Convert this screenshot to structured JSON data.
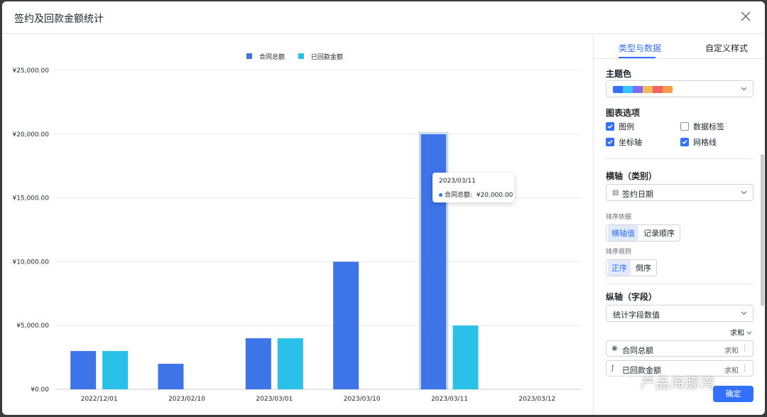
{
  "dialog": {
    "title": "签约及回款金额统计"
  },
  "tabs": [
    {
      "label": "类型与数据",
      "active": true
    },
    {
      "label": "自定义样式",
      "active": false
    }
  ],
  "theme": {
    "label": "主题色",
    "palette": [
      "#3370ff",
      "#33c5ff",
      "#7f6cf0",
      "#f6b95c",
      "#f26262",
      "#f79b48"
    ]
  },
  "chart_options": {
    "label": "图表选项",
    "items": [
      {
        "label": "图例",
        "checked": true
      },
      {
        "label": "数据标签",
        "checked": false
      },
      {
        "label": "坐标轴",
        "checked": true
      },
      {
        "label": "网格线",
        "checked": true
      }
    ]
  },
  "x_axis": {
    "label": "横轴（类别）",
    "field": "签约日期",
    "sort_by_label": "排序依据",
    "sort_by_options": [
      "横轴值",
      "记录顺序"
    ],
    "sort_by_selected": "横轴值",
    "sort_rule_label": "排序规则",
    "sort_rule_options": [
      "正序",
      "倒序"
    ],
    "sort_rule_selected": "正序"
  },
  "y_axis": {
    "label": "纵轴（字段）",
    "mode": "统计字段数值",
    "aggregate_all": "求和",
    "fields": [
      {
        "name": "合同总额",
        "agg": "求和",
        "icon": "◉"
      },
      {
        "name": "已回款金额",
        "agg": "求和",
        "icon": "ƒ"
      }
    ]
  },
  "confirm_label": "确定",
  "watermark": "产品海豚湾",
  "tooltip": {
    "date": "2023/03/11",
    "series": "合同总额:",
    "value": "¥20,000.00"
  },
  "colors": {
    "contract": "#3d74e8",
    "received": "#2ac0e8",
    "accent": "#3370ff"
  },
  "chart_data": {
    "type": "bar",
    "categories": [
      "2022/12/01",
      "2023/02/10",
      "2023/03/01",
      "2023/03/10",
      "2023/03/11",
      "2023/03/12"
    ],
    "series": [
      {
        "name": "合同总额",
        "values": [
          3000,
          2000,
          4000,
          10000,
          20000,
          null
        ]
      },
      {
        "name": "已回款金额",
        "values": [
          3000,
          null,
          4000,
          null,
          5000,
          null
        ]
      }
    ],
    "ylim": [
      0,
      25000
    ],
    "yticks": [
      "¥0.00",
      "¥5,000.00",
      "¥10,000.00",
      "¥15,000.00",
      "¥20,000.00",
      "¥25,000.00"
    ],
    "grid": true,
    "legend": "top-center"
  }
}
